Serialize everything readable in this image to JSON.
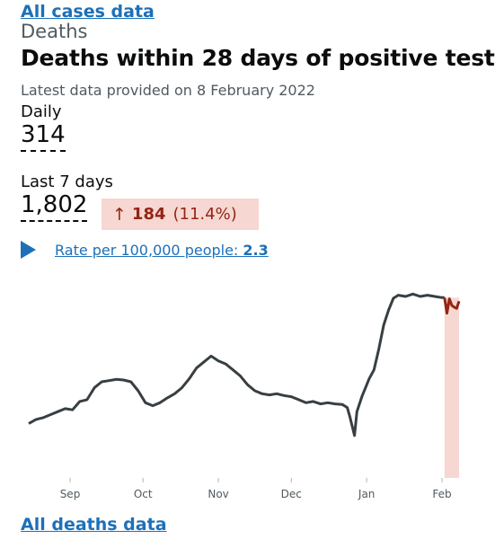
{
  "header": {
    "back_link": "All cases data",
    "section": "Deaths",
    "title": "Deaths within 28 days of positive test",
    "latest": "Latest data provided on 8 February 2022"
  },
  "daily": {
    "label": "Daily",
    "value": "314"
  },
  "last7": {
    "label": "Last 7 days",
    "value": "1,802",
    "change_arrow": "↑",
    "change_value": "184",
    "change_pct": "(11.4%)",
    "change_color": "#942514",
    "change_bg": "#f6d7d2"
  },
  "rate": {
    "text": "Rate per 100,000 people: ",
    "value": "2.3"
  },
  "footer": {
    "link": "All deaths data"
  },
  "chart_data": {
    "type": "line",
    "x_start": "2021-08-15",
    "x_end": "2022-02-08",
    "ticks": [
      "Sep",
      "Oct",
      "Nov",
      "Dec",
      "Jan",
      "Feb"
    ],
    "ylim": [
      0,
      310
    ],
    "line_color": "#383f43",
    "recent_color": "#942514",
    "highlight_color": "#f6d7d2",
    "highlight_from": "2022-02-02",
    "series": [
      {
        "x": "2021-08-15",
        "y": 85
      },
      {
        "x": "2021-08-18",
        "y": 92
      },
      {
        "x": "2021-08-21",
        "y": 95
      },
      {
        "x": "2021-08-24",
        "y": 100
      },
      {
        "x": "2021-08-27",
        "y": 105
      },
      {
        "x": "2021-08-30",
        "y": 110
      },
      {
        "x": "2021-09-02",
        "y": 108
      },
      {
        "x": "2021-09-05",
        "y": 122
      },
      {
        "x": "2021-09-08",
        "y": 125
      },
      {
        "x": "2021-09-11",
        "y": 145
      },
      {
        "x": "2021-09-14",
        "y": 155
      },
      {
        "x": "2021-09-17",
        "y": 157
      },
      {
        "x": "2021-09-20",
        "y": 159
      },
      {
        "x": "2021-09-23",
        "y": 158
      },
      {
        "x": "2021-09-26",
        "y": 155
      },
      {
        "x": "2021-09-29",
        "y": 140
      },
      {
        "x": "2021-10-02",
        "y": 120
      },
      {
        "x": "2021-10-05",
        "y": 115
      },
      {
        "x": "2021-10-08",
        "y": 120
      },
      {
        "x": "2021-10-11",
        "y": 128
      },
      {
        "x": "2021-10-14",
        "y": 135
      },
      {
        "x": "2021-10-17",
        "y": 145
      },
      {
        "x": "2021-10-20",
        "y": 160
      },
      {
        "x": "2021-10-23",
        "y": 178
      },
      {
        "x": "2021-10-26",
        "y": 188
      },
      {
        "x": "2021-10-29",
        "y": 198
      },
      {
        "x": "2021-11-01",
        "y": 190
      },
      {
        "x": "2021-11-04",
        "y": 185
      },
      {
        "x": "2021-11-07",
        "y": 175
      },
      {
        "x": "2021-11-10",
        "y": 165
      },
      {
        "x": "2021-11-13",
        "y": 150
      },
      {
        "x": "2021-11-16",
        "y": 140
      },
      {
        "x": "2021-11-19",
        "y": 135
      },
      {
        "x": "2021-11-22",
        "y": 133
      },
      {
        "x": "2021-11-25",
        "y": 135
      },
      {
        "x": "2021-11-28",
        "y": 132
      },
      {
        "x": "2021-12-01",
        "y": 130
      },
      {
        "x": "2021-12-04",
        "y": 125
      },
      {
        "x": "2021-12-07",
        "y": 120
      },
      {
        "x": "2021-12-10",
        "y": 122
      },
      {
        "x": "2021-12-13",
        "y": 118
      },
      {
        "x": "2021-12-16",
        "y": 120
      },
      {
        "x": "2021-12-19",
        "y": 118
      },
      {
        "x": "2021-12-22",
        "y": 117
      },
      {
        "x": "2021-12-24",
        "y": 112
      },
      {
        "x": "2021-12-25",
        "y": 98
      },
      {
        "x": "2021-12-27",
        "y": 65
      },
      {
        "x": "2021-12-28",
        "y": 105
      },
      {
        "x": "2021-12-30",
        "y": 130
      },
      {
        "x": "2022-01-02",
        "y": 160
      },
      {
        "x": "2022-01-04",
        "y": 175
      },
      {
        "x": "2022-01-06",
        "y": 210
      },
      {
        "x": "2022-01-08",
        "y": 250
      },
      {
        "x": "2022-01-10",
        "y": 275
      },
      {
        "x": "2022-01-12",
        "y": 295
      },
      {
        "x": "2022-01-14",
        "y": 300
      },
      {
        "x": "2022-01-17",
        "y": 298
      },
      {
        "x": "2022-01-20",
        "y": 302
      },
      {
        "x": "2022-01-23",
        "y": 298
      },
      {
        "x": "2022-01-26",
        "y": 300
      },
      {
        "x": "2022-01-29",
        "y": 298
      },
      {
        "x": "2022-02-01",
        "y": 296
      },
      {
        "x": "2022-02-02",
        "y": 296
      }
    ],
    "recent_series": [
      {
        "x": "2022-02-02",
        "y": 296
      },
      {
        "x": "2022-02-03",
        "y": 270
      },
      {
        "x": "2022-02-04",
        "y": 294
      },
      {
        "x": "2022-02-05",
        "y": 283
      },
      {
        "x": "2022-02-06",
        "y": 280
      },
      {
        "x": "2022-02-07",
        "y": 278
      },
      {
        "x": "2022-02-08",
        "y": 290
      }
    ]
  }
}
